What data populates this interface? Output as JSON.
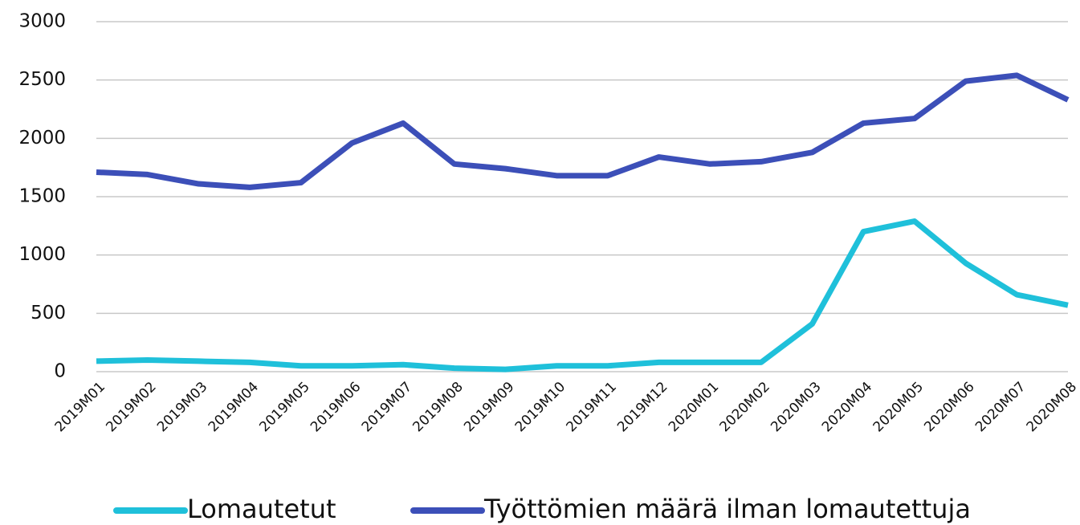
{
  "chart_data": {
    "type": "line",
    "categories": [
      "2019M01",
      "2019M02",
      "2019M03",
      "2019M04",
      "2019M05",
      "2019M06",
      "2019M07",
      "2019M08",
      "2019M09",
      "2019M10",
      "2019M11",
      "2019M12",
      "2020M01",
      "2020M02",
      "2020M03",
      "2020M04",
      "2020M05",
      "2020M06",
      "2020M07",
      "2020M08"
    ],
    "series": [
      {
        "name": "Lomautetut",
        "color": "#1fc0da",
        "values": [
          90,
          100,
          90,
          80,
          50,
          50,
          60,
          30,
          20,
          50,
          50,
          80,
          80,
          80,
          410,
          1200,
          1290,
          930,
          660,
          570
        ]
      },
      {
        "name": "Työttömien määrä ilman lomautettuja",
        "color": "#3c4fb8",
        "values": [
          1710,
          1690,
          1610,
          1580,
          1620,
          1960,
          2130,
          1780,
          1740,
          1680,
          1680,
          1840,
          1780,
          1800,
          1880,
          2130,
          2170,
          2490,
          2540,
          2330
        ]
      }
    ],
    "ylim": [
      0,
      3000
    ],
    "yticks": [
      0,
      500,
      1000,
      1500,
      2000,
      2500,
      3000
    ],
    "grid": true,
    "legend": "bottom"
  }
}
